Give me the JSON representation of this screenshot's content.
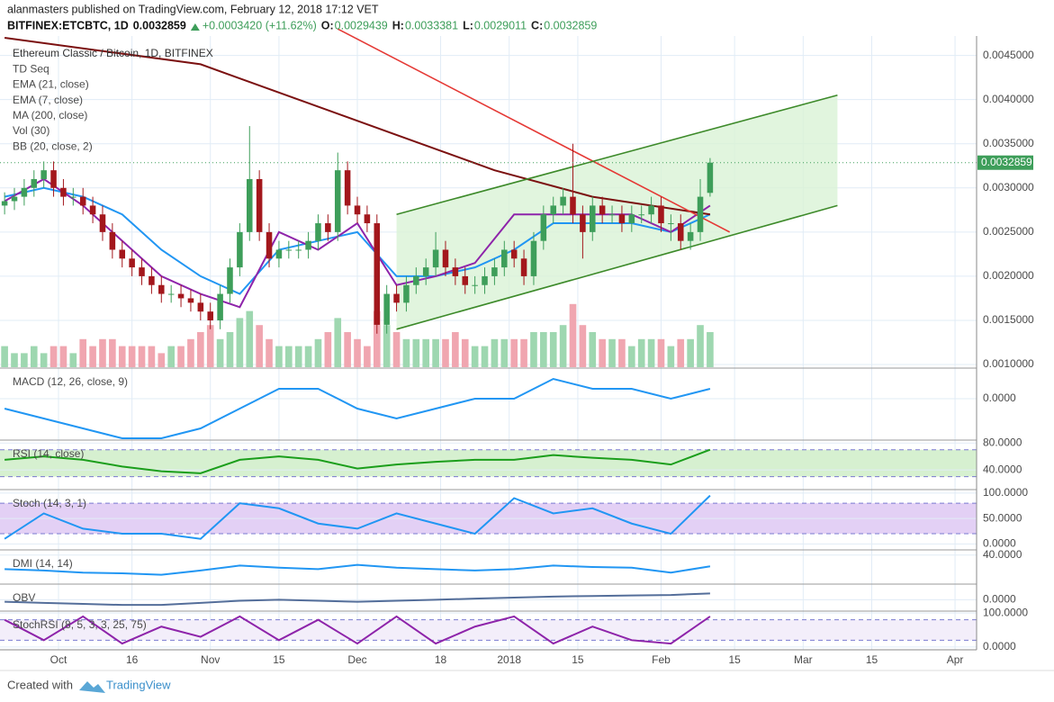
{
  "header": {
    "byline": "alanmasters published on TradingView.com, February 12, 2018 17:12 VET",
    "symbol": "BITFINEX:ETCBTC, 1D",
    "last": "0.0032859",
    "change": "+0.0003420 (+11.62%)",
    "ohlc": [
      {
        "label": "O:",
        "value": "0.0029439"
      },
      {
        "label": "H:",
        "value": "0.0033381"
      },
      {
        "label": "L:",
        "value": "0.0029011"
      },
      {
        "label": "C:",
        "value": "0.0032859"
      }
    ]
  },
  "footer": {
    "created": "Created with",
    "brand": "TradingView"
  },
  "chart_data": {
    "type": "candlestick",
    "title": "Ethereum Classic / Bitcoin, 1D, BITFINEX",
    "indicators": [
      "TD Seq",
      "Vol (30)",
      "BB (20, close, 2)"
    ],
    "up_color": "#3e9e5a",
    "down_color": "#a3171c",
    "xlim": [
      -0.47,
      99.2
    ],
    "xticks": [
      {
        "value": 5.5,
        "label": "Oct"
      },
      {
        "value": 13,
        "label": "16"
      },
      {
        "value": 21,
        "label": "Nov"
      },
      {
        "value": 28,
        "label": "15"
      },
      {
        "value": 36,
        "label": "Dec"
      },
      {
        "value": 44.5,
        "label": "18"
      },
      {
        "value": 51.5,
        "label": "2018"
      },
      {
        "value": 58.5,
        "label": "15"
      },
      {
        "value": 67,
        "label": "Feb"
      },
      {
        "value": 74.5,
        "label": "15"
      },
      {
        "value": 81.5,
        "label": "Mar"
      },
      {
        "value": 88.5,
        "label": "15"
      },
      {
        "value": 97,
        "label": "Apr"
      }
    ],
    "ylim": [
      0.00097,
      0.00472
    ],
    "yticks": [
      {
        "value": 0.001,
        "label": "0.0010000"
      },
      {
        "value": 0.0015,
        "label": "0.0015000"
      },
      {
        "value": 0.002,
        "label": "0.0020000"
      },
      {
        "value": 0.0025,
        "label": "0.0025000"
      },
      {
        "value": 0.003,
        "label": "0.0030000"
      },
      {
        "value": 0.0035,
        "label": "0.0035000"
      },
      {
        "value": 0.004,
        "label": "0.0040000"
      },
      {
        "value": 0.0045,
        "label": "0.0045000"
      }
    ],
    "open": [
      0.0028,
      0.00285,
      0.0029,
      0.003,
      0.0031,
      0.0032,
      0.003,
      0.0029,
      0.0029,
      0.0028,
      0.0027,
      0.0025,
      0.0023,
      0.0022,
      0.0021,
      0.002,
      0.0019,
      0.0018,
      0.0018,
      0.00175,
      0.0017,
      0.0016,
      0.0015,
      0.0018,
      0.0021,
      0.0025,
      0.0031,
      0.0025,
      0.0022,
      0.0023,
      0.0023,
      0.0023,
      0.0024,
      0.0026,
      0.0025,
      0.0032,
      0.0028,
      0.0027,
      0.0026,
      0.00145,
      0.0018,
      0.0017,
      0.0019,
      0.002,
      0.0021,
      0.0023,
      0.0021,
      0.002,
      0.0019,
      0.0019,
      0.002,
      0.0021,
      0.0023,
      0.0022,
      0.002,
      0.0024,
      0.0027,
      0.0028,
      0.0029,
      0.0027,
      0.0025,
      0.0028,
      0.0027,
      0.0027,
      0.0026,
      0.0027,
      0.0027,
      0.0028,
      0.0026,
      0.0026,
      0.0024,
      0.0025,
      0.0029439
    ],
    "high": [
      0.00295,
      0.003,
      0.0031,
      0.0032,
      0.0033,
      0.0033,
      0.0031,
      0.003,
      0.003,
      0.0029,
      0.0028,
      0.0026,
      0.0024,
      0.0023,
      0.0022,
      0.0021,
      0.002,
      0.0019,
      0.0019,
      0.00185,
      0.0018,
      0.0017,
      0.0019,
      0.0022,
      0.0026,
      0.0037,
      0.0032,
      0.0026,
      0.0024,
      0.0024,
      0.0024,
      0.0025,
      0.0027,
      0.0027,
      0.0034,
      0.0033,
      0.0029,
      0.0028,
      0.0027,
      0.0019,
      0.0019,
      0.002,
      0.0021,
      0.0022,
      0.0025,
      0.0024,
      0.0022,
      0.0021,
      0.002,
      0.0021,
      0.0022,
      0.0024,
      0.0024,
      0.0023,
      0.0025,
      0.0028,
      0.0029,
      0.003,
      0.0035,
      0.0028,
      0.0029,
      0.0029,
      0.0028,
      0.0028,
      0.0028,
      0.0028,
      0.0029,
      0.0029,
      0.0027,
      0.0027,
      0.0026,
      0.0031,
      0.0033381
    ],
    "low": [
      0.0027,
      0.00275,
      0.0028,
      0.0029,
      0.003,
      0.0029,
      0.0028,
      0.0028,
      0.0027,
      0.0026,
      0.0024,
      0.0022,
      0.0021,
      0.002,
      0.0019,
      0.0018,
      0.0017,
      0.0017,
      0.00165,
      0.0016,
      0.0015,
      0.0014,
      0.0014,
      0.0017,
      0.002,
      0.0024,
      0.0024,
      0.0021,
      0.0021,
      0.0022,
      0.0022,
      0.0022,
      0.0023,
      0.0024,
      0.0024,
      0.0027,
      0.0026,
      0.0025,
      0.00135,
      0.00135,
      0.0016,
      0.0016,
      0.0018,
      0.0019,
      0.002,
      0.002,
      0.0019,
      0.0018,
      0.0018,
      0.0018,
      0.0019,
      0.002,
      0.0021,
      0.0019,
      0.0019,
      0.0023,
      0.0026,
      0.0027,
      0.0026,
      0.0022,
      0.0024,
      0.0026,
      0.0026,
      0.0025,
      0.0025,
      0.0026,
      0.0026,
      0.0025,
      0.0024,
      0.0023,
      0.0023,
      0.0024,
      0.0029011
    ],
    "close": [
      0.00285,
      0.0029,
      0.003,
      0.0031,
      0.0032,
      0.003,
      0.0029,
      0.0029,
      0.0028,
      0.0027,
      0.0025,
      0.0023,
      0.0022,
      0.0021,
      0.002,
      0.0019,
      0.0018,
      0.0018,
      0.00175,
      0.0017,
      0.0016,
      0.0015,
      0.0018,
      0.0021,
      0.0025,
      0.0031,
      0.0025,
      0.0022,
      0.0023,
      0.0023,
      0.0023,
      0.0024,
      0.0026,
      0.0025,
      0.0032,
      0.0028,
      0.0027,
      0.0026,
      0.00145,
      0.0018,
      0.0017,
      0.0019,
      0.002,
      0.0021,
      0.0023,
      0.0021,
      0.002,
      0.0019,
      0.0019,
      0.002,
      0.0021,
      0.0023,
      0.0022,
      0.002,
      0.0024,
      0.0027,
      0.0028,
      0.0029,
      0.0027,
      0.0025,
      0.0028,
      0.0027,
      0.0027,
      0.0026,
      0.0027,
      0.0027,
      0.0028,
      0.0026,
      0.0026,
      0.0024,
      0.0025,
      0.0029,
      0.0032859
    ],
    "volume": [
      3,
      2,
      2,
      3,
      2,
      3,
      3,
      2,
      4,
      3,
      4,
      4,
      3,
      3,
      3,
      3,
      2,
      3,
      3,
      4,
      5,
      6,
      4,
      5,
      7,
      8,
      6,
      4,
      3,
      3,
      3,
      3,
      4,
      5,
      7,
      5,
      4,
      3,
      8,
      6,
      5,
      4,
      4,
      4,
      4,
      4,
      5,
      4,
      3,
      3,
      4,
      4,
      4,
      4,
      5,
      5,
      5,
      6,
      9,
      6,
      5,
      4,
      4,
      4,
      3,
      4,
      4,
      4,
      3,
      4,
      4,
      6,
      5
    ],
    "volume_lim": [
      0,
      10
    ],
    "series": [
      {
        "name": "EMA (21, close)",
        "color": "#2196f3",
        "x": [
          0,
          4,
          8,
          12,
          16,
          20,
          24,
          28,
          32,
          36,
          40,
          44,
          48,
          52,
          56,
          60,
          64,
          68,
          72
        ],
        "values": [
          0.0029,
          0.003,
          0.0029,
          0.0027,
          0.0023,
          0.002,
          0.0018,
          0.0023,
          0.0024,
          0.0025,
          0.002,
          0.002,
          0.0021,
          0.0023,
          0.0026,
          0.0026,
          0.0026,
          0.0025,
          0.0027
        ]
      },
      {
        "name": "EMA (7, close)",
        "color": "#8e24aa",
        "x": [
          0,
          4,
          8,
          12,
          16,
          20,
          24,
          28,
          32,
          36,
          40,
          44,
          48,
          52,
          56,
          60,
          64,
          68,
          72
        ],
        "values": [
          0.00285,
          0.0031,
          0.0028,
          0.0024,
          0.002,
          0.0018,
          0.00165,
          0.0025,
          0.0023,
          0.0026,
          0.0019,
          0.002,
          0.00215,
          0.0027,
          0.0027,
          0.0027,
          0.0027,
          0.0025,
          0.0028
        ]
      },
      {
        "name": "MA (200, close)",
        "color": "#7b1010",
        "x": [
          0,
          20,
          40,
          50,
          60,
          72
        ],
        "values": [
          0.0047,
          0.0044,
          0.0036,
          0.0032,
          0.0029,
          0.0027
        ]
      }
    ],
    "trendlines": [
      {
        "color": "#e53935",
        "x": [
          34,
          74
        ],
        "values": [
          0.0048,
          0.0025
        ]
      },
      {
        "color": "#3d8a2a",
        "x": [
          40,
          85
        ],
        "values": [
          0.0027,
          0.00405
        ]
      },
      {
        "color": "#3d8a2a",
        "x": [
          40,
          85
        ],
        "values": [
          0.0014,
          0.0028
        ]
      }
    ],
    "panels": [
      {
        "type": "line",
        "title": "MACD (12, 26, close, 9)",
        "color": "#2196f3",
        "x": [
          0,
          4,
          8,
          12,
          16,
          20,
          24,
          28,
          32,
          36,
          40,
          44,
          48,
          52,
          56,
          60,
          64,
          68,
          72
        ],
        "values": [
          -0.0001,
          -0.0002,
          -0.0003,
          -0.0004,
          -0.0004,
          -0.0003,
          -0.0001,
          0.0001,
          0.0001,
          -0.0001,
          -0.0002,
          -0.0001,
          0,
          0,
          0.0002,
          0.0001,
          0.0001,
          0,
          0.0001
        ],
        "ylim": [
          -0.0004,
          0.0003
        ],
        "yticks": [
          {
            "value": 0,
            "label": "0.0000"
          }
        ]
      },
      {
        "type": "line",
        "title": "RSI (14, close)",
        "color": "#1b9e1b",
        "x": [
          0,
          4,
          8,
          12,
          16,
          20,
          24,
          28,
          32,
          36,
          40,
          44,
          48,
          52,
          56,
          60,
          64,
          68,
          72
        ],
        "values": [
          55,
          60,
          55,
          45,
          38,
          35,
          55,
          60,
          55,
          42,
          48,
          52,
          55,
          55,
          62,
          58,
          55,
          48,
          70
        ],
        "ylim": [
          12,
          83
        ],
        "band": [
          30,
          70
        ],
        "band_color": "#d6f0d0",
        "yticks": [
          {
            "value": 80,
            "label": "80.0000"
          },
          {
            "value": 40,
            "label": "40.0000"
          }
        ]
      },
      {
        "type": "line",
        "title": "Stoch (14, 3, 1)",
        "color": "#2196f3",
        "x": [
          0,
          4,
          8,
          12,
          16,
          20,
          24,
          28,
          32,
          36,
          40,
          44,
          48,
          52,
          56,
          60,
          64,
          68,
          72
        ],
        "values": [
          10,
          60,
          30,
          20,
          20,
          10,
          80,
          70,
          40,
          30,
          60,
          40,
          20,
          90,
          60,
          70,
          40,
          20,
          95
        ],
        "ylim": [
          -10,
          105
        ],
        "band": [
          20,
          80
        ],
        "band_color": "#e3d0f5",
        "yticks": [
          {
            "value": 100,
            "label": "100.0000"
          },
          {
            "value": 50,
            "label": "50.0000"
          },
          {
            "value": 0,
            "label": "0.0000"
          }
        ]
      },
      {
        "type": "line",
        "title": "DMI (14, 14)",
        "color": "#2196f3",
        "x": [
          0,
          4,
          8,
          12,
          16,
          20,
          24,
          28,
          32,
          36,
          40,
          44,
          48,
          52,
          56,
          60,
          64,
          68,
          72
        ],
        "values": [
          20,
          18,
          15,
          14,
          12,
          18,
          25,
          22,
          20,
          26,
          22,
          20,
          18,
          20,
          25,
          23,
          22,
          15,
          24
        ],
        "ylim": [
          0,
          46
        ],
        "yticks": [
          {
            "value": 40,
            "label": "40.0000"
          }
        ]
      },
      {
        "type": "line",
        "title": "OBV",
        "color": "#546e9a",
        "x": [
          0,
          4,
          8,
          12,
          16,
          20,
          24,
          28,
          32,
          36,
          40,
          44,
          48,
          52,
          56,
          60,
          64,
          68,
          72
        ],
        "values": [
          -0.2,
          -0.3,
          -0.4,
          -0.5,
          -0.5,
          -0.3,
          -0.1,
          0,
          -0.1,
          -0.2,
          -0.1,
          0,
          0.1,
          0.2,
          0.3,
          0.35,
          0.4,
          0.45,
          0.6
        ],
        "ylim": [
          -1,
          1.4
        ],
        "yticks": [
          {
            "value": 0,
            "label": "0.0000"
          }
        ]
      },
      {
        "type": "line",
        "title": "StochRSI (8, 5, 3, 3, 25, 75)",
        "color": "#8e24aa",
        "x": [
          0,
          4,
          8,
          12,
          16,
          20,
          24,
          28,
          32,
          36,
          40,
          44,
          48,
          52,
          56,
          60,
          64,
          68,
          72
        ],
        "values": [
          80,
          20,
          90,
          10,
          60,
          30,
          90,
          20,
          80,
          10,
          90,
          10,
          60,
          90,
          10,
          60,
          20,
          10,
          90
        ],
        "ylim": [
          -3,
          103
        ],
        "band": [
          20,
          80
        ],
        "band_color": "#f3eefa",
        "yticks": [
          {
            "value": 100,
            "label": "100.0000"
          },
          {
            "value": 0,
            "label": "0.0000"
          }
        ]
      }
    ]
  }
}
